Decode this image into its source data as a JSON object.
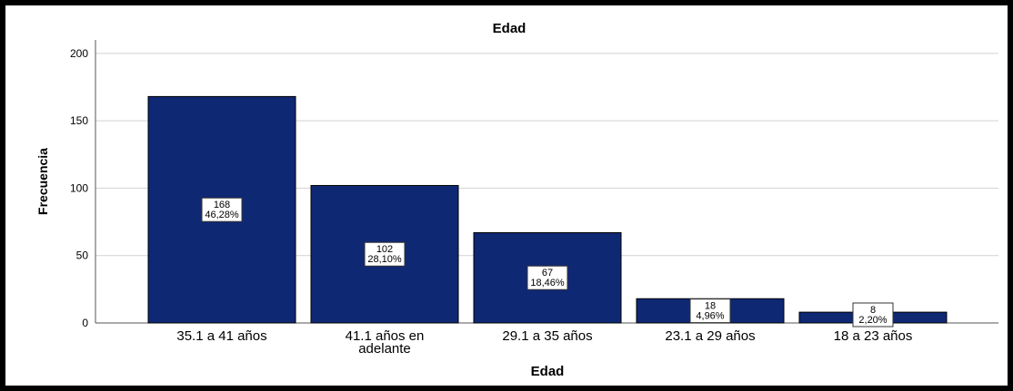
{
  "chart_data": {
    "type": "bar",
    "title": "Edad",
    "xlabel": "Edad",
    "ylabel": "Frecuencia",
    "categories": [
      "35.1 a 41 años",
      "41.1 años en adelante",
      "29.1 a 35 años",
      "23.1 a 29 años",
      "18 a 23 años"
    ],
    "category_lines": [
      [
        "35.1 a 41 años"
      ],
      [
        "41.1 años en",
        "adelante"
      ],
      [
        "29.1 a 35 años"
      ],
      [
        "23.1 a 29 años"
      ],
      [
        "18 a 23 años"
      ]
    ],
    "values": [
      168,
      102,
      67,
      18,
      8
    ],
    "percent_labels": [
      "46,28%",
      "28,10%",
      "18,46%",
      "4,96%",
      "2,20%"
    ],
    "ylim": [
      0,
      210
    ],
    "yticks": [
      0,
      50,
      100,
      150,
      200
    ],
    "grid": true,
    "bar_color": "#0F2874"
  }
}
